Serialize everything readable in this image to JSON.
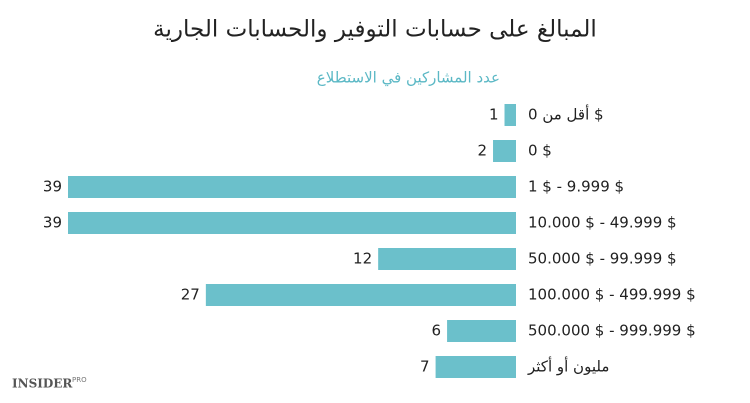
{
  "chart_data": {
    "type": "bar",
    "orientation": "horizontal",
    "title": "المبالغ على حسابات التوفير والحسابات الجارية",
    "axis_label": "عدد المشاركين في الاستطلاع",
    "categories": [
      "أقل من 0 $",
      "0 $",
      "1 $ - 9.999 $",
      "10.000 $ - 49.999 $",
      "50.000 $ - 99.999 $",
      "100.000 $ - 499.999 $",
      "500.000 $ - 999.999 $",
      "مليون أو أكثر"
    ],
    "values": [
      1,
      2,
      39,
      39,
      12,
      27,
      6,
      7
    ],
    "color": "#6bc0cb"
  },
  "logo": "INSIDER",
  "logo_suffix": "PRO"
}
